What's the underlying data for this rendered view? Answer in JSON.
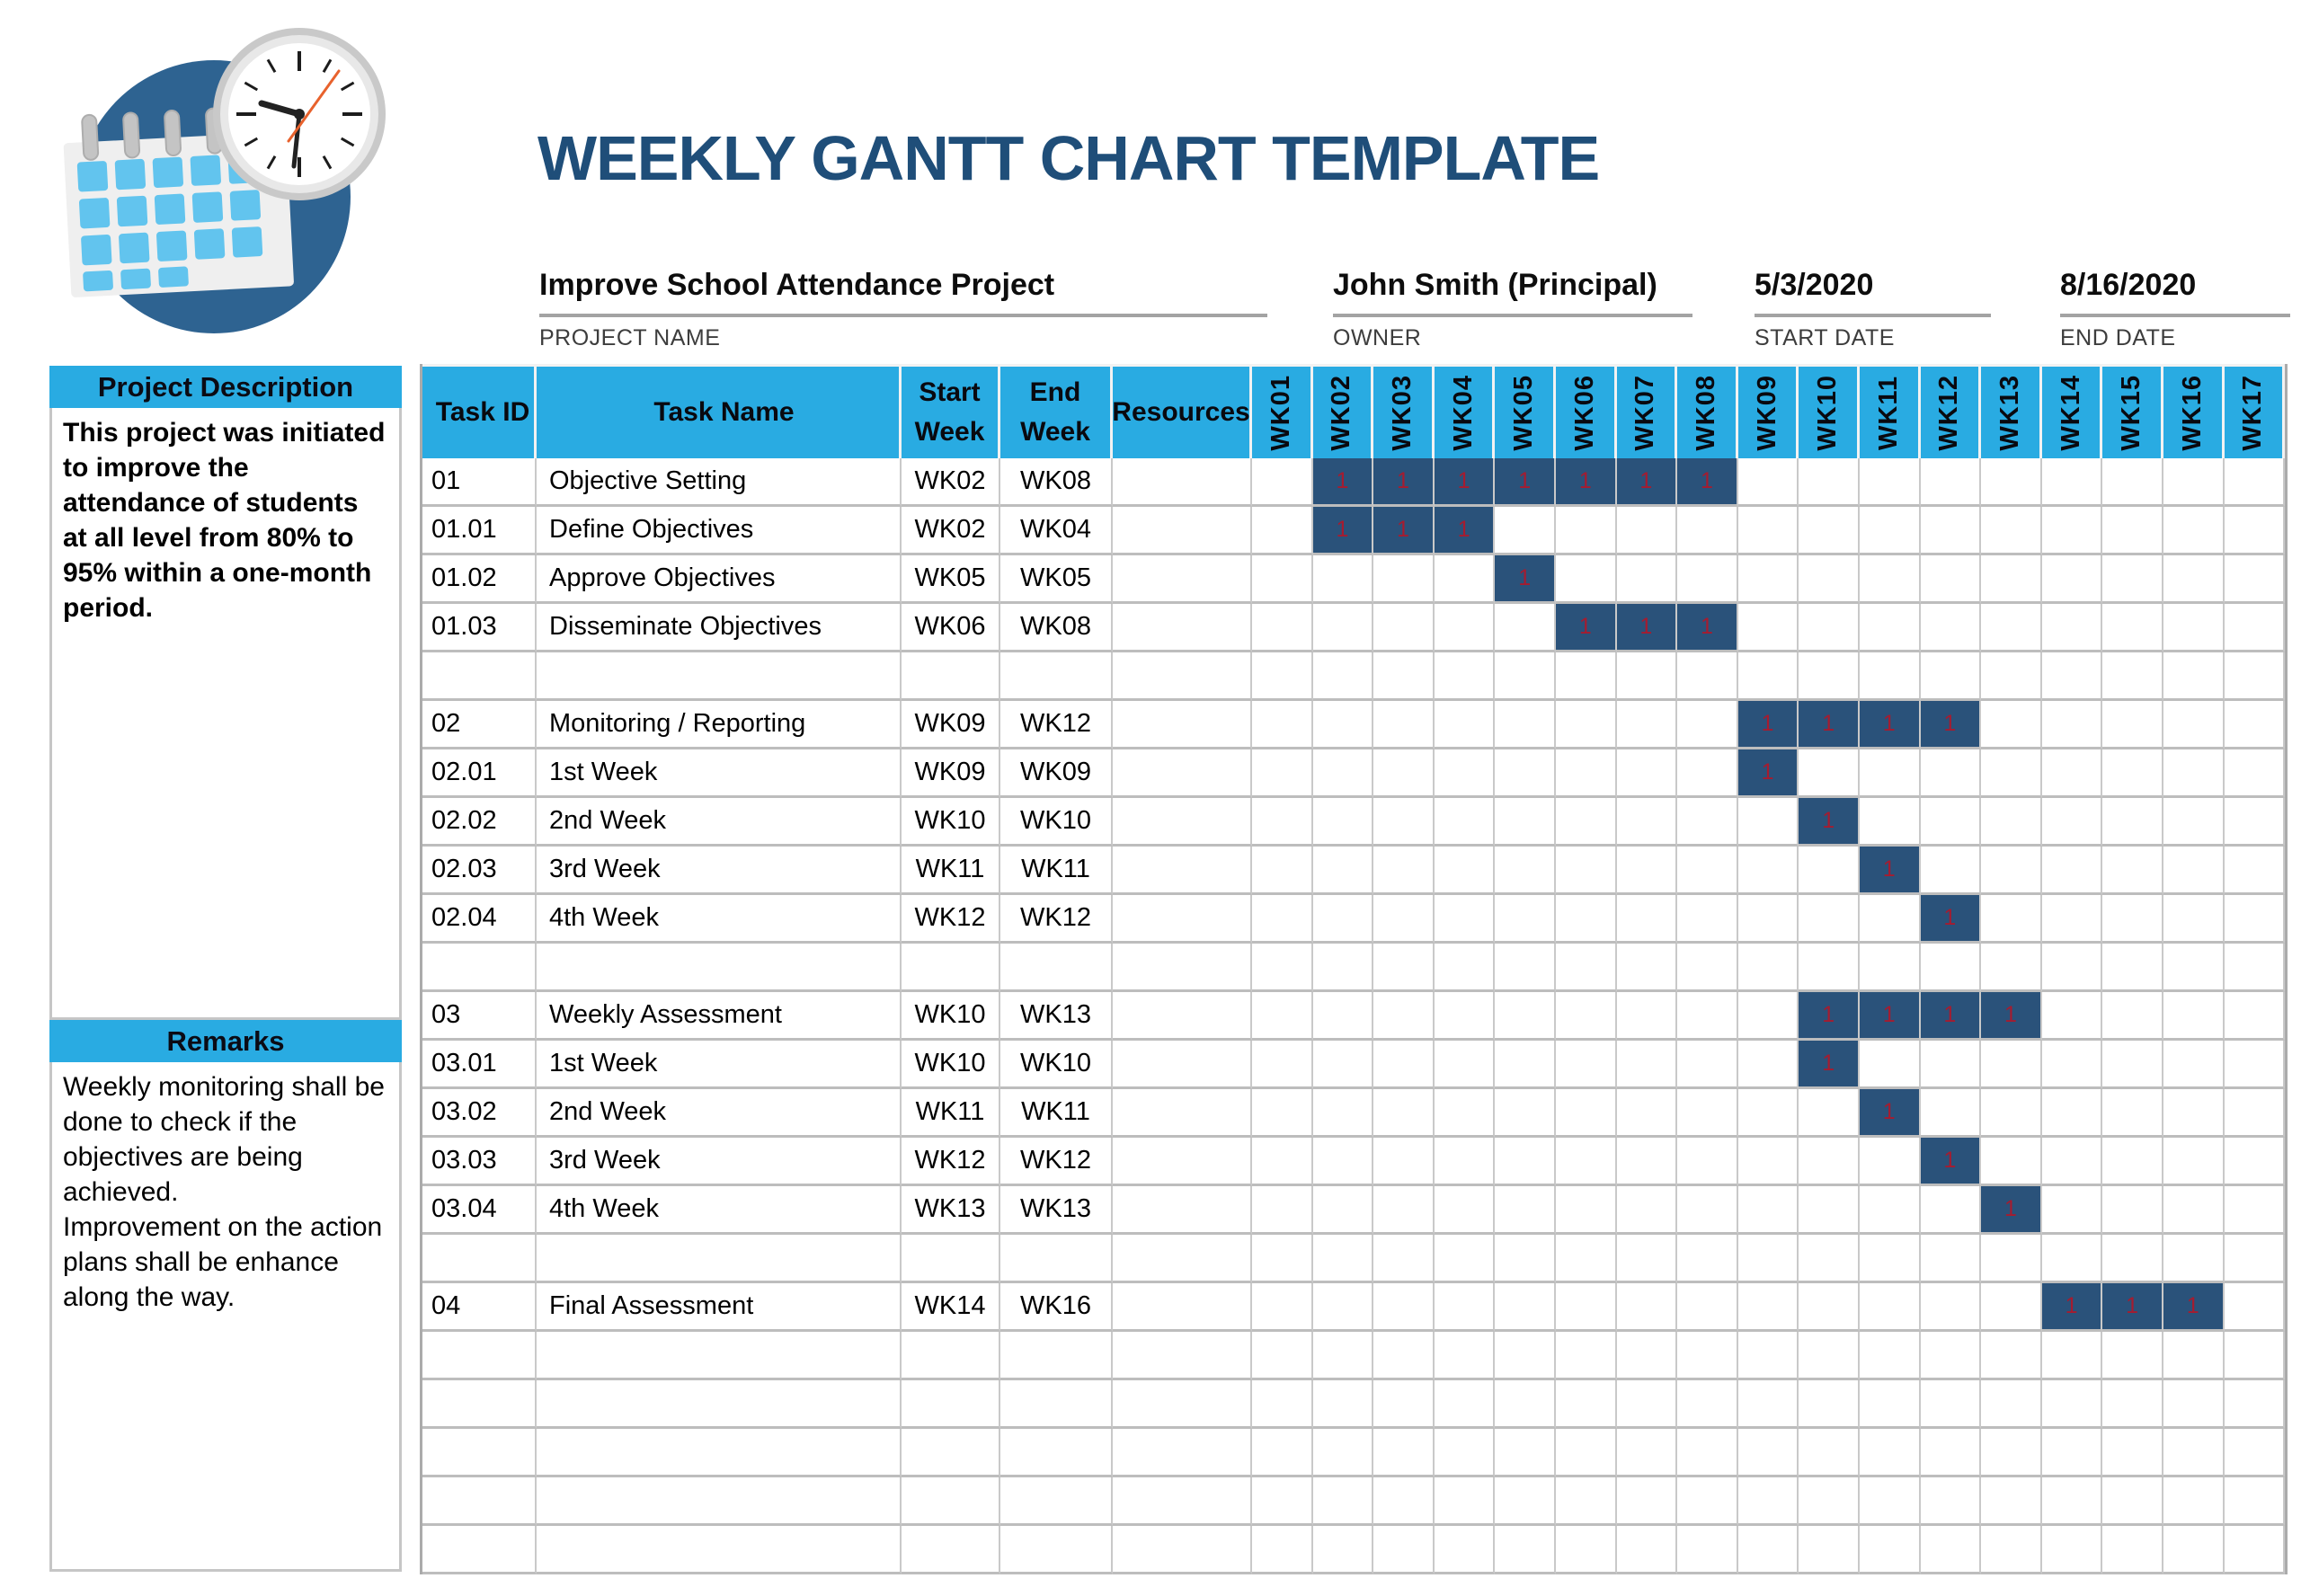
{
  "title": "WEEKLY GANTT CHART TEMPLATE",
  "logo": {
    "icon": "calendar-clock-logo"
  },
  "colors": {
    "accent_cyan": "#29ABE2",
    "title_navy": "#1F4E79",
    "bar_navy": "#2A527A",
    "bar_value_red": "#A51C30",
    "logo_circle_blue": "#2E6391",
    "logo_day_blue": "#62C4EE",
    "grid_gray": "#BDBDBD"
  },
  "project_info": {
    "project_name": {
      "value": "Improve School Attendance Project",
      "label": "PROJECT NAME"
    },
    "owner": {
      "value": "John Smith (Principal)",
      "label": "OWNER"
    },
    "start_date": {
      "value": "5/3/2020",
      "label": "START DATE"
    },
    "end_date": {
      "value": "8/16/2020",
      "label": "END DATE"
    }
  },
  "sidebar": {
    "description_header": "Project Description",
    "description_body": "This project was initiated to improve the attendance of students at all level from 80% to 95% within a one-month period.",
    "remarks_header": "Remarks",
    "remarks_body": "Weekly monitoring shall be done to check if the objectives are being achieved.\nImprovement on the action plans shall be enhance along the way."
  },
  "table": {
    "headers": {
      "task_id": "Task ID",
      "task_name": "Task Name",
      "start_line1": "Start",
      "start_line2": "Week",
      "end_line1": "End",
      "end_line2": "Week",
      "resources": "Resources"
    },
    "week_columns": [
      "WK01",
      "WK02",
      "WK03",
      "WK04",
      "WK05",
      "WK06",
      "WK07",
      "WK08",
      "WK09",
      "WK10",
      "WK11",
      "WK12",
      "WK13",
      "WK14",
      "WK15",
      "WK16",
      "WK17"
    ],
    "bar_value": "1",
    "rows": [
      {
        "id": "01",
        "name": "Objective Setting",
        "start": "WK02",
        "end": "WK08",
        "resources": "",
        "bar_from": 2,
        "bar_to": 8
      },
      {
        "id": "01.01",
        "name": "Define Objectives",
        "start": "WK02",
        "end": "WK04",
        "resources": "",
        "bar_from": 2,
        "bar_to": 4
      },
      {
        "id": "01.02",
        "name": "Approve Objectives",
        "start": "WK05",
        "end": "WK05",
        "resources": "",
        "bar_from": 5,
        "bar_to": 5
      },
      {
        "id": "01.03",
        "name": "Disseminate Objectives",
        "start": "WK06",
        "end": "WK08",
        "resources": "",
        "bar_from": 6,
        "bar_to": 8
      },
      {
        "id": "",
        "name": "",
        "start": "",
        "end": "",
        "resources": "",
        "bar_from": null,
        "bar_to": null
      },
      {
        "id": "02",
        "name": "Monitoring / Reporting",
        "start": "WK09",
        "end": "WK12",
        "resources": "",
        "bar_from": 9,
        "bar_to": 12
      },
      {
        "id": "02.01",
        "name": "1st Week",
        "start": "WK09",
        "end": "WK09",
        "resources": "",
        "bar_from": 9,
        "bar_to": 9
      },
      {
        "id": "02.02",
        "name": "2nd Week",
        "start": "WK10",
        "end": "WK10",
        "resources": "",
        "bar_from": 10,
        "bar_to": 10
      },
      {
        "id": "02.03",
        "name": "3rd Week",
        "start": "WK11",
        "end": "WK11",
        "resources": "",
        "bar_from": 11,
        "bar_to": 11
      },
      {
        "id": "02.04",
        "name": "4th Week",
        "start": "WK12",
        "end": "WK12",
        "resources": "",
        "bar_from": 12,
        "bar_to": 12
      },
      {
        "id": "",
        "name": "",
        "start": "",
        "end": "",
        "resources": "",
        "bar_from": null,
        "bar_to": null
      },
      {
        "id": "03",
        "name": "Weekly Assessment",
        "start": "WK10",
        "end": "WK13",
        "resources": "",
        "bar_from": 10,
        "bar_to": 13
      },
      {
        "id": "03.01",
        "name": "1st Week",
        "start": "WK10",
        "end": "WK10",
        "resources": "",
        "bar_from": 10,
        "bar_to": 10
      },
      {
        "id": "03.02",
        "name": "2nd Week",
        "start": "WK11",
        "end": "WK11",
        "resources": "",
        "bar_from": 11,
        "bar_to": 11
      },
      {
        "id": "03.03",
        "name": "3rd Week",
        "start": "WK12",
        "end": "WK12",
        "resources": "",
        "bar_from": 12,
        "bar_to": 12
      },
      {
        "id": "03.04",
        "name": "4th Week",
        "start": "WK13",
        "end": "WK13",
        "resources": "",
        "bar_from": 13,
        "bar_to": 13
      },
      {
        "id": "",
        "name": "",
        "start": "",
        "end": "",
        "resources": "",
        "bar_from": null,
        "bar_to": null
      },
      {
        "id": "04",
        "name": "Final Assessment",
        "start": "WK14",
        "end": "WK16",
        "resources": "",
        "bar_from": 14,
        "bar_to": 16
      },
      {
        "id": "",
        "name": "",
        "start": "",
        "end": "",
        "resources": "",
        "bar_from": null,
        "bar_to": null
      },
      {
        "id": "",
        "name": "",
        "start": "",
        "end": "",
        "resources": "",
        "bar_from": null,
        "bar_to": null
      },
      {
        "id": "",
        "name": "",
        "start": "",
        "end": "",
        "resources": "",
        "bar_from": null,
        "bar_to": null
      },
      {
        "id": "",
        "name": "",
        "start": "",
        "end": "",
        "resources": "",
        "bar_from": null,
        "bar_to": null
      },
      {
        "id": "",
        "name": "",
        "start": "",
        "end": "",
        "resources": "",
        "bar_from": null,
        "bar_to": null
      }
    ]
  },
  "chart_data": {
    "type": "gantt",
    "title": "WEEKLY GANTT CHART TEMPLATE",
    "x_axis_weeks": [
      "WK01",
      "WK02",
      "WK03",
      "WK04",
      "WK05",
      "WK06",
      "WK07",
      "WK08",
      "WK09",
      "WK10",
      "WK11",
      "WK12",
      "WK13",
      "WK14",
      "WK15",
      "WK16",
      "WK17"
    ],
    "cell_value_when_active": 1,
    "tasks": [
      {
        "id": "01",
        "name": "Objective Setting",
        "start_week": "WK02",
        "end_week": "WK08",
        "duration_weeks": 7
      },
      {
        "id": "01.01",
        "name": "Define Objectives",
        "start_week": "WK02",
        "end_week": "WK04",
        "duration_weeks": 3
      },
      {
        "id": "01.02",
        "name": "Approve Objectives",
        "start_week": "WK05",
        "end_week": "WK05",
        "duration_weeks": 1
      },
      {
        "id": "01.03",
        "name": "Disseminate Objectives",
        "start_week": "WK06",
        "end_week": "WK08",
        "duration_weeks": 3
      },
      {
        "id": "02",
        "name": "Monitoring / Reporting",
        "start_week": "WK09",
        "end_week": "WK12",
        "duration_weeks": 4
      },
      {
        "id": "02.01",
        "name": "1st Week",
        "start_week": "WK09",
        "end_week": "WK09",
        "duration_weeks": 1
      },
      {
        "id": "02.02",
        "name": "2nd Week",
        "start_week": "WK10",
        "end_week": "WK10",
        "duration_weeks": 1
      },
      {
        "id": "02.03",
        "name": "3rd Week",
        "start_week": "WK11",
        "end_week": "WK11",
        "duration_weeks": 1
      },
      {
        "id": "02.04",
        "name": "4th Week",
        "start_week": "WK12",
        "end_week": "WK12",
        "duration_weeks": 1
      },
      {
        "id": "03",
        "name": "Weekly Assessment",
        "start_week": "WK10",
        "end_week": "WK13",
        "duration_weeks": 4
      },
      {
        "id": "03.01",
        "name": "1st Week",
        "start_week": "WK10",
        "end_week": "WK10",
        "duration_weeks": 1
      },
      {
        "id": "03.02",
        "name": "2nd Week",
        "start_week": "WK11",
        "end_week": "WK11",
        "duration_weeks": 1
      },
      {
        "id": "03.03",
        "name": "3rd Week",
        "start_week": "WK12",
        "end_week": "WK12",
        "duration_weeks": 1
      },
      {
        "id": "03.04",
        "name": "4th Week",
        "start_week": "WK13",
        "end_week": "WK13",
        "duration_weeks": 1
      },
      {
        "id": "04",
        "name": "Final Assessment",
        "start_week": "WK14",
        "end_week": "WK16",
        "duration_weeks": 3
      }
    ]
  }
}
